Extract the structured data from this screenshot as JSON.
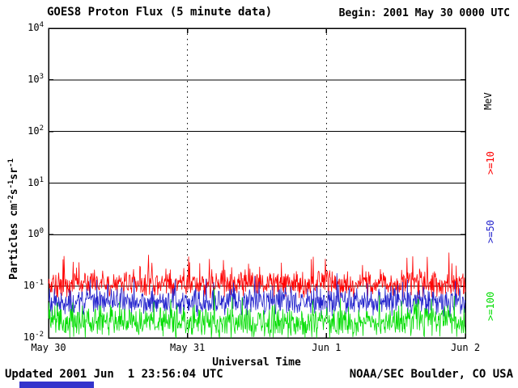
{
  "header": {
    "title": "GOES8 Proton Flux (5 minute data)",
    "begin_label": "Begin: 2001 May 30 0000 UTC"
  },
  "footer": {
    "updated": "Updated 2001 Jun  1 23:56:04 UTC",
    "source": "NOAA/SEC Boulder, CO USA"
  },
  "colors": {
    "background": "#ffffff",
    "axis": "#000000",
    "ge10": "#ff0000",
    "ge50": "#2222cc",
    "ge100": "#00dd00",
    "artifact_bar": "#3333cc"
  },
  "chart_data": {
    "type": "line",
    "title": "GOES8 Proton Flux (5 minute data)",
    "xlabel": "Universal Time",
    "ylabel_parts": [
      {
        "t": "Particles cm"
      },
      {
        "t": "-2",
        "sup": true
      },
      {
        "t": "s"
      },
      {
        "t": "-1",
        "sup": true
      },
      {
        "t": "sr"
      },
      {
        "t": "-1",
        "sup": true
      }
    ],
    "x_ticks": [
      "May 30",
      "May 31",
      "Jun 1",
      "Jun 2"
    ],
    "x_span_days": 3,
    "ylog": true,
    "ylim": [
      0.01,
      10000
    ],
    "y_ticks": [
      {
        "base": "10",
        "exp": "4",
        "value": 4
      },
      {
        "base": "10",
        "exp": "3",
        "value": 3
      },
      {
        "base": "10",
        "exp": "2",
        "value": 2
      },
      {
        "base": "10",
        "exp": "1",
        "value": 1
      },
      {
        "base": "10",
        "exp": "0",
        "value": 0
      },
      {
        "base": "10",
        "exp": "-1",
        "value": -1
      },
      {
        "base": "10",
        "exp": "-2",
        "value": -2
      }
    ],
    "right_axis_unit": "MeV",
    "grid": {
      "horizontal_decades": true,
      "vertical_dashed_at_day_boundaries": true
    },
    "samples": 864,
    "seed": 20010530,
    "series": [
      {
        "name": ">=10",
        "color": "#ff0000",
        "approx_median": 0.12,
        "approx_range": [
          0.05,
          0.6
        ],
        "log10_base": -0.95,
        "log10_noise": 0.3,
        "spike_prob": 0.08,
        "log10_spike": 0.45
      },
      {
        "name": ">=50",
        "color": "#2222cc",
        "approx_median": 0.05,
        "approx_range": [
          0.02,
          0.25
        ],
        "log10_base": -1.3,
        "log10_noise": 0.3,
        "spike_prob": 0.07,
        "log10_spike": 0.4
      },
      {
        "name": ">=100",
        "color": "#00dd00",
        "approx_median": 0.022,
        "approx_range": [
          0.01,
          0.1
        ],
        "log10_base": -1.7,
        "log10_noise": 0.35,
        "spike_prob": 0.07,
        "log10_spike": 0.4
      }
    ]
  }
}
